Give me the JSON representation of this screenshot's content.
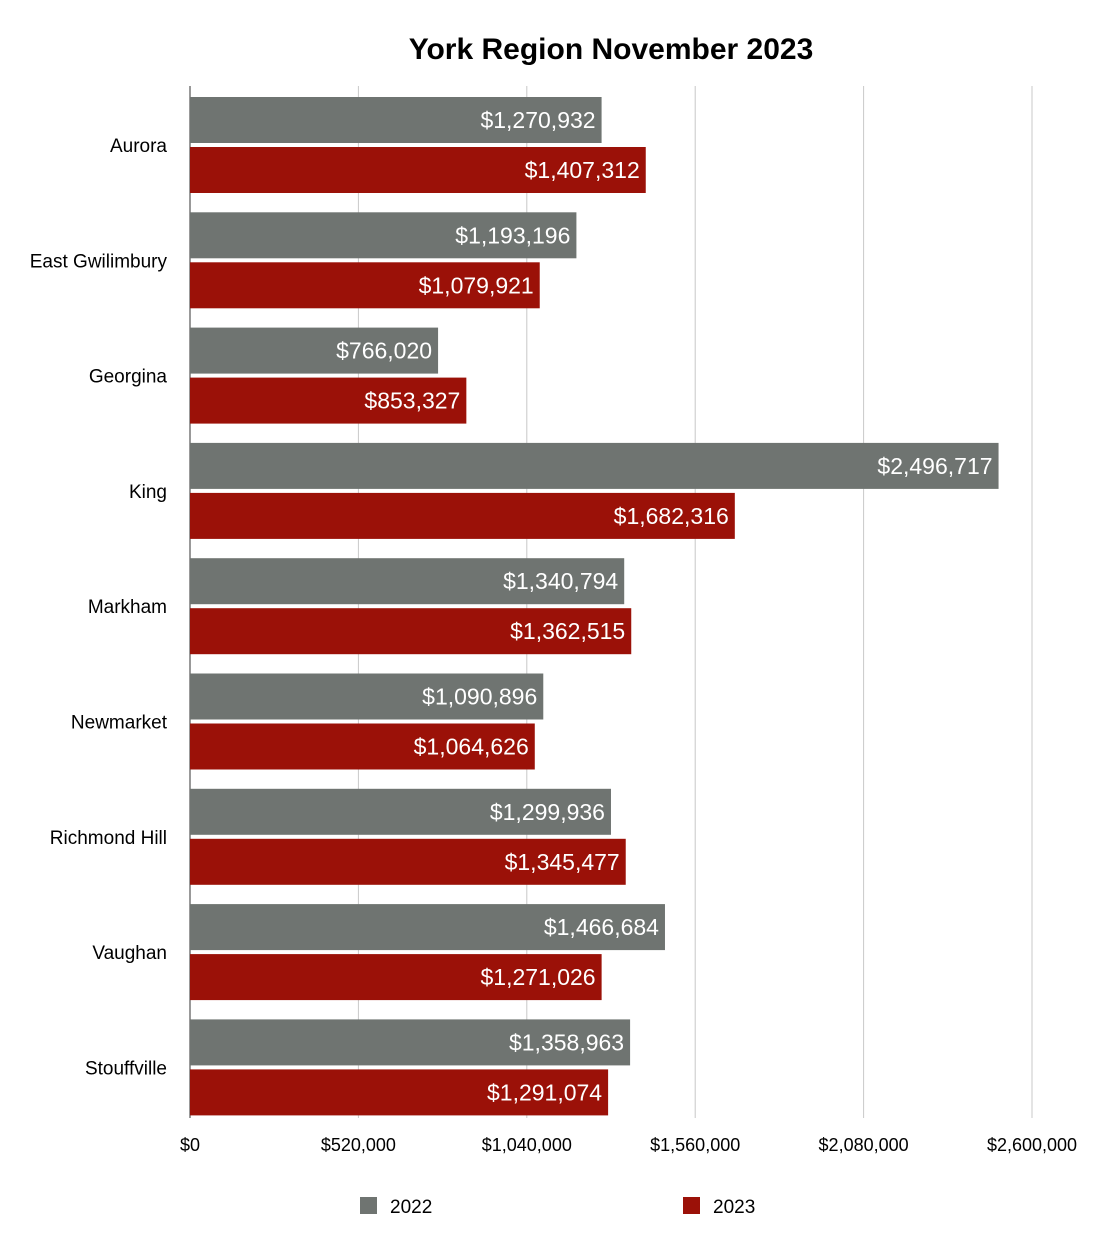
{
  "chart_data": {
    "type": "bar",
    "orientation": "horizontal",
    "title": "York Region November 2023",
    "xlabel": "",
    "ylabel": "",
    "categories": [
      "Aurora",
      "East Gwilimbury",
      "Georgina",
      "King",
      "Markham",
      "Newmarket",
      "Richmond Hill",
      "Vaughan",
      "Stouffville"
    ],
    "series": [
      {
        "name": "2022",
        "color": "#6f7471",
        "values": [
          1270932,
          1193196,
          766020,
          2496717,
          1340794,
          1090896,
          1299936,
          1466684,
          1358963
        ],
        "labels": [
          "$1,270,932",
          "$1,193,196",
          "$766,020",
          "$2,496,717",
          "$1,340,794",
          "$1,090,896",
          "$1,299,936",
          "$1,466,684",
          "$1,358,963"
        ]
      },
      {
        "name": "2023",
        "color": "#9b1108",
        "values": [
          1407312,
          1079921,
          853327,
          1682316,
          1362515,
          1064626,
          1345477,
          1271026,
          1291074
        ],
        "labels": [
          "$1,407,312",
          "$1,079,921",
          "$853,327",
          "$1,682,316",
          "$1,362,515",
          "$1,064,626",
          "$1,345,477",
          "$1,271,026",
          "$1,291,074"
        ]
      }
    ],
    "xlim": [
      0,
      2600000
    ],
    "xticks": [
      0,
      520000,
      1040000,
      1560000,
      2080000,
      2600000
    ],
    "xtick_labels": [
      "$0",
      "$520,000",
      "$1,040,000",
      "$1,560,000",
      "$2,080,000",
      "$2,600,000"
    ],
    "grid": true,
    "legend_position": "bottom"
  }
}
